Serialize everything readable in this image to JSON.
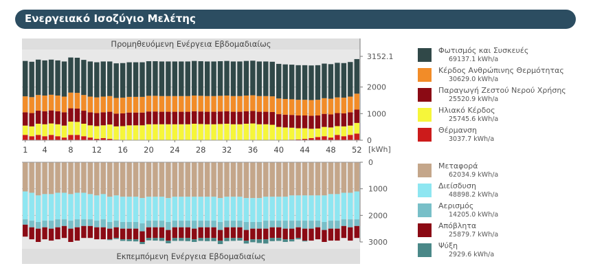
{
  "title": "Ενεργειακό Ισοζύγιο Μελέτης",
  "colors": {
    "header_bg": "#2c4d61",
    "panel_bg": "#e8e8e8",
    "lighting": "#304848",
    "people": "#f28c28",
    "dhw": "#8b0a14",
    "solar": "#f6f63a",
    "heating": "#cc1b1b",
    "transmission": "#c4a68a",
    "infiltration": "#8ee6f1",
    "ventilation": "#78bfc8",
    "waste": "#8b0a14",
    "cooling": "#4a8888"
  },
  "chart_data": [
    {
      "type": "bar",
      "stacked": true,
      "title": "Προμηθευόμενη Ενέργεια Εβδομαδιαίως",
      "xlabel": "",
      "ylabel": "[kWh]",
      "x": [
        1,
        2,
        3,
        4,
        5,
        6,
        7,
        8,
        9,
        10,
        11,
        12,
        13,
        14,
        15,
        16,
        17,
        18,
        19,
        20,
        21,
        22,
        23,
        24,
        25,
        26,
        27,
        28,
        29,
        30,
        31,
        32,
        33,
        34,
        35,
        36,
        37,
        38,
        39,
        40,
        41,
        42,
        43,
        44,
        45,
        46,
        47,
        48,
        49,
        50,
        51,
        52
      ],
      "x_ticks": [
        1,
        4,
        8,
        12,
        16,
        20,
        24,
        28,
        32,
        36,
        40,
        44,
        48,
        52
      ],
      "y_ticks": [
        0,
        1000,
        2000,
        3152.1
      ],
      "y_tick_labels": [
        "0",
        "1000",
        "2000",
        "3152.1"
      ],
      "ylim": [
        0,
        3152.1
      ],
      "series": [
        {
          "name": "Θέρμανση",
          "color": "#cc1b1b",
          "values": [
            200,
            150,
            200,
            150,
            200,
            150,
            100,
            200,
            200,
            150,
            100,
            50,
            80,
            50,
            20,
            10,
            0,
            0,
            0,
            0,
            0,
            0,
            0,
            0,
            0,
            0,
            0,
            0,
            0,
            0,
            0,
            0,
            0,
            0,
            0,
            0,
            0,
            0,
            0,
            0,
            10,
            20,
            30,
            50,
            80,
            120,
            150,
            100,
            200,
            150,
            200,
            250
          ]
        },
        {
          "name": "Ηλιακό Κέρδος",
          "color": "#f6f63a",
          "values": [
            350,
            370,
            420,
            450,
            430,
            450,
            450,
            500,
            490,
            470,
            460,
            480,
            480,
            540,
            500,
            520,
            560,
            560,
            560,
            600,
            600,
            600,
            600,
            600,
            600,
            600,
            620,
            610,
            600,
            600,
            610,
            620,
            600,
            600,
            620,
            630,
            600,
            600,
            580,
            500,
            470,
            450,
            420,
            400,
            350,
            320,
            350,
            380,
            330,
            370,
            350,
            400
          ]
        },
        {
          "name": "Παραγωγή Ζεστού Νερού Χρήσης",
          "color": "#8b0a14",
          "values": [
            500,
            500,
            490,
            490,
            490,
            490,
            500,
            500,
            500,
            490,
            490,
            490,
            490,
            480,
            480,
            480,
            480,
            480,
            480,
            480,
            480,
            470,
            470,
            470,
            470,
            470,
            470,
            470,
            470,
            470,
            470,
            470,
            470,
            470,
            470,
            470,
            470,
            470,
            480,
            480,
            480,
            480,
            480,
            480,
            490,
            490,
            490,
            490,
            490,
            490,
            500,
            500
          ]
        },
        {
          "name": "Κέρδος Ανθρώπινης Θερμότητας",
          "color": "#f28c28",
          "values": [
            600,
            600,
            590,
            590,
            590,
            590,
            590,
            590,
            590,
            590,
            590,
            590,
            590,
            590,
            590,
            590,
            590,
            590,
            590,
            590,
            590,
            590,
            590,
            590,
            590,
            590,
            590,
            590,
            590,
            590,
            590,
            590,
            590,
            590,
            590,
            590,
            590,
            590,
            590,
            590,
            590,
            590,
            590,
            590,
            590,
            590,
            590,
            590,
            590,
            590,
            590,
            600
          ]
        },
        {
          "name": "Φωτισμός και Συσκευές",
          "color": "#304848",
          "values": [
            1330,
            1330,
            1330,
            1320,
            1320,
            1320,
            1320,
            1320,
            1320,
            1320,
            1320,
            1320,
            1320,
            1300,
            1300,
            1300,
            1300,
            1300,
            1300,
            1300,
            1300,
            1300,
            1300,
            1300,
            1300,
            1300,
            1300,
            1300,
            1300,
            1300,
            1300,
            1300,
            1300,
            1300,
            1300,
            1300,
            1300,
            1300,
            1300,
            1300,
            1300,
            1300,
            1300,
            1300,
            1300,
            1300,
            1300,
            1300,
            1300,
            1300,
            1300,
            1300
          ]
        }
      ]
    },
    {
      "type": "bar",
      "stacked": true,
      "inverted": true,
      "title": "Εκπεμπόμενη Ενέργεια Εβδομαδιαίως",
      "xlabel": "",
      "ylabel": "",
      "x": [
        1,
        2,
        3,
        4,
        5,
        6,
        7,
        8,
        9,
        10,
        11,
        12,
        13,
        14,
        15,
        16,
        17,
        18,
        19,
        20,
        21,
        22,
        23,
        24,
        25,
        26,
        27,
        28,
        29,
        30,
        31,
        32,
        33,
        34,
        35,
        36,
        37,
        38,
        39,
        40,
        41,
        42,
        43,
        44,
        45,
        46,
        47,
        48,
        49,
        50,
        51,
        52
      ],
      "y_ticks": [
        0,
        1000,
        2000,
        3000
      ],
      "y_tick_labels": [
        "0",
        "1000",
        "2000",
        "3000"
      ],
      "ylim": [
        0,
        3152.1
      ],
      "series": [
        {
          "name": "Μεταφορά",
          "color": "#c4a68a",
          "values": [
            1100,
            1150,
            1250,
            1200,
            1200,
            1150,
            1150,
            1200,
            1150,
            1150,
            1200,
            1250,
            1200,
            1300,
            1250,
            1300,
            1300,
            1300,
            1350,
            1300,
            1300,
            1300,
            1350,
            1300,
            1300,
            1300,
            1300,
            1300,
            1300,
            1300,
            1350,
            1300,
            1300,
            1300,
            1350,
            1350,
            1350,
            1300,
            1300,
            1300,
            1300,
            1250,
            1250,
            1250,
            1250,
            1250,
            1250,
            1200,
            1200,
            1150,
            1150,
            1100
          ]
        },
        {
          "name": "Διείσδυση",
          "color": "#8ee6f1",
          "values": [
            1050,
            1050,
            1000,
            1000,
            1000,
            1000,
            1000,
            1000,
            1000,
            1000,
            950,
            950,
            950,
            950,
            950,
            950,
            950,
            950,
            950,
            900,
            900,
            900,
            900,
            900,
            900,
            900,
            900,
            900,
            900,
            900,
            900,
            900,
            900,
            900,
            900,
            900,
            900,
            900,
            900,
            900,
            900,
            950,
            950,
            950,
            950,
            950,
            1000,
            1000,
            1000,
            1000,
            1000,
            1050
          ]
        },
        {
          "name": "Αερισμός",
          "color": "#78bfc8",
          "values": [
            200,
            250,
            250,
            250,
            300,
            300,
            250,
            300,
            300,
            250,
            250,
            250,
            300,
            250,
            250,
            250,
            250,
            250,
            300,
            250,
            250,
            250,
            300,
            250,
            250,
            250,
            300,
            250,
            250,
            250,
            300,
            250,
            250,
            250,
            300,
            250,
            250,
            300,
            250,
            250,
            300,
            300,
            250,
            300,
            300,
            250,
            300,
            300,
            300,
            250,
            300,
            250
          ]
        },
        {
          "name": "Απόβλητα",
          "color": "#8b0a14",
          "values": [
            450,
            450,
            500,
            450,
            450,
            450,
            450,
            500,
            500,
            450,
            450,
            450,
            450,
            400,
            400,
            400,
            400,
            400,
            400,
            400,
            400,
            400,
            400,
            400,
            400,
            400,
            400,
            400,
            400,
            400,
            400,
            400,
            400,
            400,
            400,
            400,
            400,
            400,
            400,
            400,
            400,
            400,
            400,
            450,
            450,
            450,
            450,
            450,
            450,
            450,
            500,
            450
          ]
        },
        {
          "name": "Ψύξη",
          "color": "#4a8888",
          "values": [
            0,
            0,
            0,
            0,
            0,
            0,
            0,
            0,
            0,
            0,
            0,
            0,
            0,
            30,
            40,
            60,
            70,
            80,
            80,
            90,
            100,
            110,
            100,
            110,
            110,
            120,
            100,
            110,
            120,
            120,
            130,
            120,
            110,
            100,
            110,
            110,
            140,
            160,
            120,
            110,
            100,
            80,
            50,
            30,
            0,
            0,
            0,
            0,
            0,
            0,
            0,
            0
          ]
        }
      ]
    }
  ],
  "legend_top": [
    {
      "name": "Φωτισμός και Συσκευές",
      "value": "69137.1 kWh/a",
      "color": "#304848"
    },
    {
      "name": "Κέρδος Ανθρώπινης Θερμότητας",
      "value": "30629.0 kWh/a",
      "color": "#f28c28"
    },
    {
      "name": "Παραγωγή Ζεστού Νερού Χρήσης",
      "value": "25520.9 kWh/a",
      "color": "#8b0a14"
    },
    {
      "name": "Ηλιακό Κέρδος",
      "value": "25745.6 kWh/a",
      "color": "#f6f63a"
    },
    {
      "name": "Θέρμανση",
      "value": "3037.7 kWh/a",
      "color": "#cc1b1b"
    }
  ],
  "legend_bottom": [
    {
      "name": "Μεταφορά",
      "value": "62034.9 kWh/a",
      "color": "#c4a68a"
    },
    {
      "name": "Διείσδυση",
      "value": "48898.2 kWh/a",
      "color": "#8ee6f1"
    },
    {
      "name": "Αερισμός",
      "value": "14205.0 kWh/a",
      "color": "#78bfc8"
    },
    {
      "name": "Απόβλητα",
      "value": "25879.7 kWh/a",
      "color": "#8b0a14"
    },
    {
      "name": "Ψύξη",
      "value": "2929.6 kWh/a",
      "color": "#4a8888"
    }
  ]
}
